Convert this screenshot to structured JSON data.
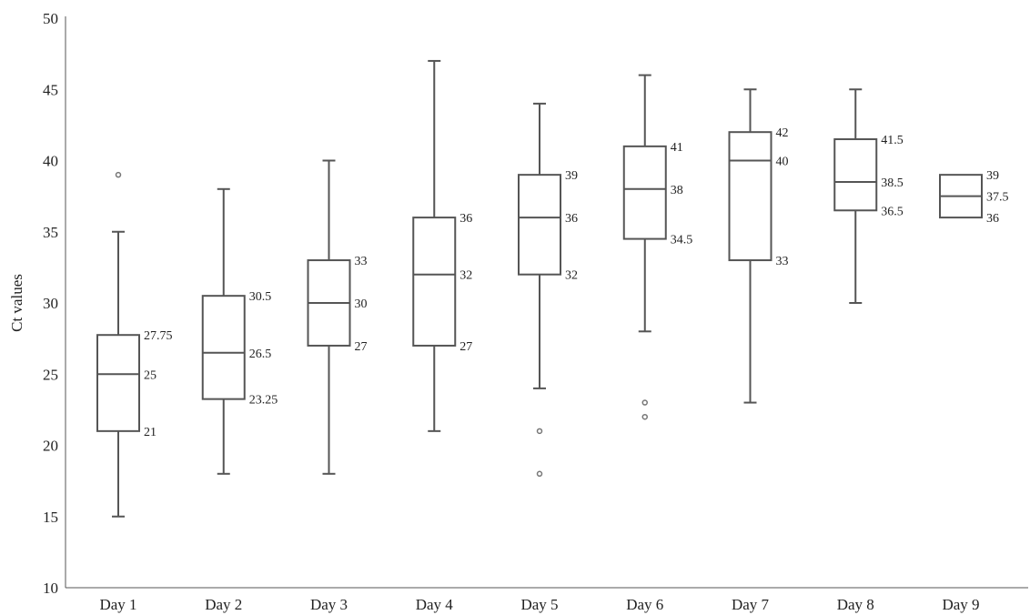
{
  "chart_data": {
    "type": "box",
    "ylabel": "Ct values",
    "xlabel": "",
    "ylim": [
      10,
      50
    ],
    "yticks": [
      "10",
      "15",
      "20",
      "25",
      "30",
      "35",
      "40",
      "45",
      "50"
    ],
    "grid": false,
    "legend": false,
    "categories": [
      "Day 1",
      "Day 2",
      "Day 3",
      "Day 4",
      "Day 5",
      "Day 6",
      "Day 7",
      "Day 8",
      "Day 9"
    ],
    "boxes": [
      {
        "category": "Day 1",
        "min": 15,
        "q1": 21,
        "median": 25,
        "q3": 27.75,
        "max": 35,
        "outliers": [
          39
        ],
        "labels": {
          "q1": "21",
          "median": "25",
          "q3": "27.75"
        }
      },
      {
        "category": "Day 2",
        "min": 18,
        "q1": 23.25,
        "median": 26.5,
        "q3": 30.5,
        "max": 38,
        "outliers": [],
        "labels": {
          "q1": "23.25",
          "median": "26.5",
          "q3": "30.5"
        }
      },
      {
        "category": "Day 3",
        "min": 18,
        "q1": 27,
        "median": 30,
        "q3": 33,
        "max": 40,
        "outliers": [],
        "labels": {
          "q1": "27",
          "median": "30",
          "q3": "33"
        }
      },
      {
        "category": "Day 4",
        "min": 21,
        "q1": 27,
        "median": 32,
        "q3": 36,
        "max": 47,
        "outliers": [],
        "labels": {
          "q1": "27",
          "median": "32",
          "q3": "36"
        }
      },
      {
        "category": "Day 5",
        "min": 24,
        "q1": 32,
        "median": 36,
        "q3": 39,
        "max": 44,
        "outliers": [
          21,
          18
        ],
        "labels": {
          "q1": "32",
          "median": "36",
          "q3": "39"
        }
      },
      {
        "category": "Day 6",
        "min": 28,
        "q1": 34.5,
        "median": 38,
        "q3": 41,
        "max": 46,
        "outliers": [
          23,
          22
        ],
        "labels": {
          "q1": "34.5",
          "median": "38",
          "q3": "41"
        }
      },
      {
        "category": "Day 7",
        "min": 23,
        "q1": 33,
        "median": 40,
        "q3": 42,
        "max": 45,
        "outliers": [],
        "labels": {
          "q1": "33",
          "median": "40",
          "q3": "42"
        }
      },
      {
        "category": "Day 8",
        "min": 30,
        "q1": 36.5,
        "median": 38.5,
        "q3": 41.5,
        "max": 45,
        "outliers": [],
        "labels": {
          "q1": "36.5",
          "median": "38.5",
          "q3": "41.5"
        }
      },
      {
        "category": "Day 9",
        "min": 36,
        "q1": 36,
        "median": 37.5,
        "q3": 39,
        "max": 39,
        "outliers": [],
        "labels": {
          "q1": "36",
          "median": "37.5",
          "q3": "39"
        }
      }
    ],
    "colors": {
      "stroke": "#555555",
      "outlier": "#777777",
      "text": "#222222"
    }
  }
}
